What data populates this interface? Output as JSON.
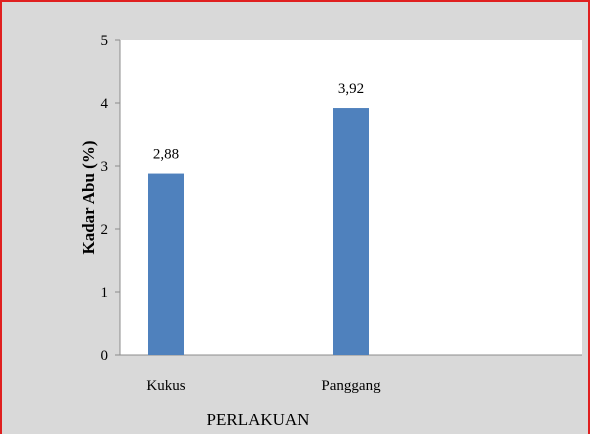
{
  "chart_data": {
    "type": "bar",
    "categories": [
      "Kukus",
      "Panggang"
    ],
    "values": [
      2.88,
      3.92
    ],
    "data_labels": [
      "2,88",
      "3,92"
    ],
    "xlabel": "PERLAKUAN",
    "ylabel": "Kadar Abu (%)",
    "ylim": [
      0,
      5
    ],
    "yticks": [
      "0",
      "1",
      "2",
      "3",
      "4",
      "5"
    ],
    "grid": false,
    "legend": "none",
    "colors": {
      "bar": "#4f81bd",
      "plot_area": "#ffffff",
      "chart_area": "#d9d9d9",
      "border": "#e02020"
    }
  }
}
